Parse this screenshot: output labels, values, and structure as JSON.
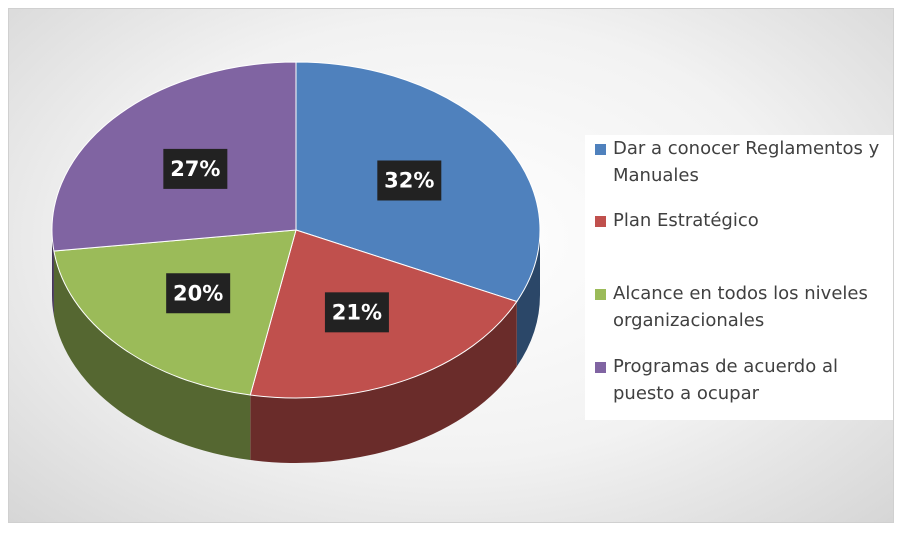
{
  "chart_data": {
    "type": "pie",
    "categories": [
      "Dar a conocer Reglamentos y Manuales",
      "Plan Estratégico",
      "Alcance en todos los niveles organizacionales",
      "Programas de acuerdo al puesto a ocupar"
    ],
    "values": [
      32,
      21,
      20,
      27
    ],
    "value_labels": [
      "32%",
      "21%",
      "20%",
      "27%"
    ],
    "colors": [
      "#4f81bd",
      "#c0504d",
      "#9bbb59",
      "#8064a2"
    ],
    "legend": "right"
  }
}
